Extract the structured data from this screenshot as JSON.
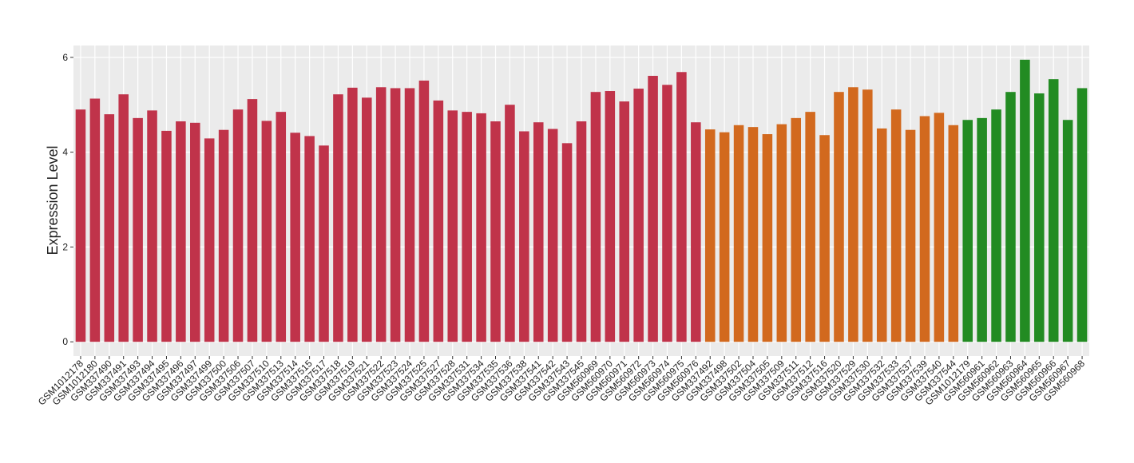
{
  "chart_data": {
    "type": "bar",
    "y_label": "Expression Level",
    "categories": [
      "GSM1012178",
      "GSM1012180",
      "GSM337490",
      "GSM337491",
      "GSM337493",
      "GSM337494",
      "GSM337495",
      "GSM337496",
      "GSM337497",
      "GSM337499",
      "GSM337500",
      "GSM337506",
      "GSM337507",
      "GSM337510",
      "GSM337513",
      "GSM337514",
      "GSM337515",
      "GSM337517",
      "GSM337518",
      "GSM337519",
      "GSM337521",
      "GSM337522",
      "GSM337523",
      "GSM337524",
      "GSM337525",
      "GSM337527",
      "GSM337528",
      "GSM337531",
      "GSM337534",
      "GSM337535",
      "GSM337536",
      "GSM337538",
      "GSM337541",
      "GSM337542",
      "GSM337543",
      "GSM337545",
      "GSM560969",
      "GSM560970",
      "GSM560971",
      "GSM560972",
      "GSM560973",
      "GSM560974",
      "GSM560975",
      "GSM560976",
      "GSM337492",
      "GSM337498",
      "GSM337502",
      "GSM337504",
      "GSM337505",
      "GSM337509",
      "GSM337511",
      "GSM337512",
      "GSM337516",
      "GSM337520",
      "GSM337529",
      "GSM337530",
      "GSM337532",
      "GSM337533",
      "GSM337537",
      "GSM337539",
      "GSM337540",
      "GSM337544",
      "GSM1012179",
      "GSM560961",
      "GSM560962",
      "GSM560963",
      "GSM560964",
      "GSM560965",
      "GSM560966",
      "GSM560967",
      "GSM560968"
    ],
    "values": [
      4.9,
      5.13,
      4.8,
      5.22,
      4.72,
      4.88,
      4.45,
      4.65,
      4.62,
      4.29,
      4.47,
      4.9,
      5.12,
      4.66,
      4.85,
      4.41,
      4.34,
      4.14,
      5.22,
      5.36,
      5.15,
      5.37,
      5.35,
      5.35,
      5.51,
      5.09,
      4.88,
      4.85,
      4.82,
      4.65,
      5.0,
      4.44,
      4.63,
      4.49,
      4.19,
      4.65,
      5.27,
      5.29,
      5.07,
      5.34,
      5.61,
      5.42,
      5.69,
      4.63,
      4.48,
      4.42,
      4.57,
      4.53,
      4.38,
      4.59,
      4.72,
      4.85,
      4.36,
      5.27,
      5.37,
      5.32,
      4.5,
      4.9,
      4.47,
      4.76,
      4.83,
      4.57,
      4.68,
      4.72,
      4.9,
      5.27,
      5.95,
      5.24,
      5.54,
      4.68,
      5.35
    ],
    "colors": [
      "#c0334a",
      "#c0334a",
      "#c0334a",
      "#c0334a",
      "#c0334a",
      "#c0334a",
      "#c0334a",
      "#c0334a",
      "#c0334a",
      "#c0334a",
      "#c0334a",
      "#c0334a",
      "#c0334a",
      "#c0334a",
      "#c0334a",
      "#c0334a",
      "#c0334a",
      "#c0334a",
      "#c0334a",
      "#c0334a",
      "#c0334a",
      "#c0334a",
      "#c0334a",
      "#c0334a",
      "#c0334a",
      "#c0334a",
      "#c0334a",
      "#c0334a",
      "#c0334a",
      "#c0334a",
      "#c0334a",
      "#c0334a",
      "#c0334a",
      "#c0334a",
      "#c0334a",
      "#c0334a",
      "#c0334a",
      "#c0334a",
      "#c0334a",
      "#c0334a",
      "#c0334a",
      "#c0334a",
      "#c0334a",
      "#c0334a",
      "#d2691e",
      "#d2691e",
      "#d2691e",
      "#d2691e",
      "#d2691e",
      "#d2691e",
      "#d2691e",
      "#d2691e",
      "#d2691e",
      "#d2691e",
      "#d2691e",
      "#d2691e",
      "#d2691e",
      "#d2691e",
      "#d2691e",
      "#d2691e",
      "#d2691e",
      "#d2691e",
      "#228b22",
      "#228b22",
      "#228b22",
      "#228b22",
      "#228b22",
      "#228b22",
      "#228b22",
      "#228b22",
      "#228b22"
    ],
    "ylim": [
      -0.3,
      6.25
    ],
    "yticks": [
      0,
      2,
      4,
      6
    ],
    "grid": true
  }
}
